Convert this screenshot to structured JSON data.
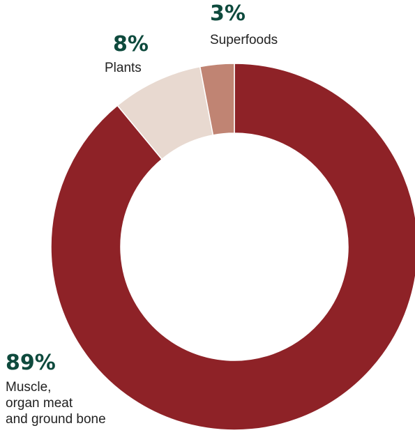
{
  "chart_data": {
    "type": "pie",
    "subtype": "donut",
    "slices": [
      {
        "value": 89,
        "percent_label": "89%",
        "label_lines": [
          "Muscle,",
          "organ meat",
          "and ground bone"
        ],
        "color": "#8e2227"
      },
      {
        "value": 8,
        "percent_label": "8%",
        "label_lines": [
          "Plants"
        ],
        "color": "#e8d9d0"
      },
      {
        "value": 3,
        "percent_label": "3%",
        "label_lines": [
          "Superfoods"
        ],
        "color": "#c08473"
      }
    ],
    "label_color": "#0e4a3d",
    "legend": "none"
  }
}
